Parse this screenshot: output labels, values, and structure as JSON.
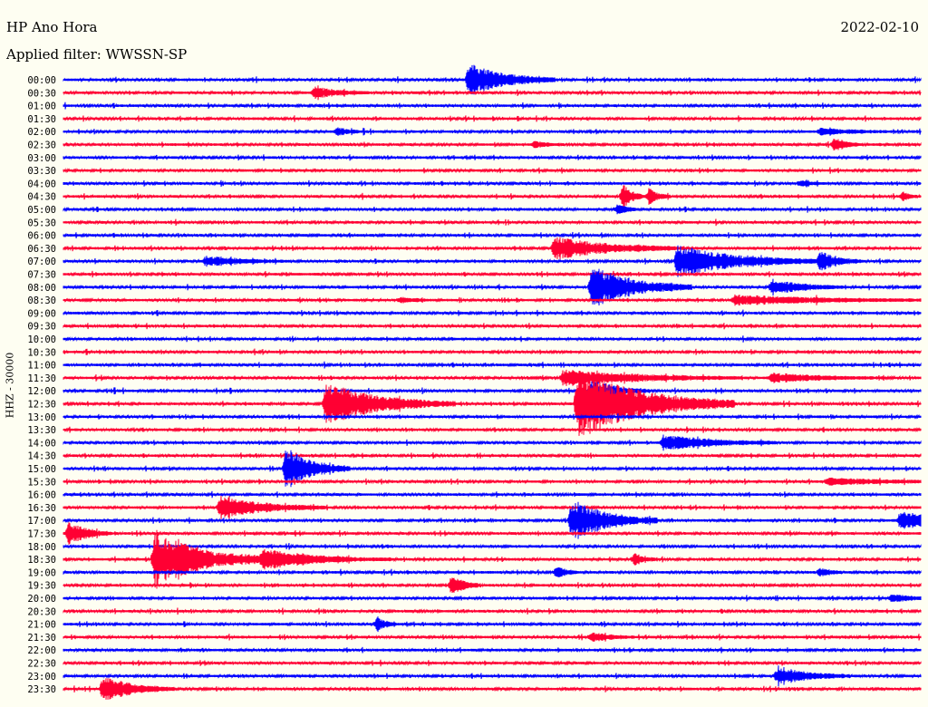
{
  "header": {
    "station": "HP Ano Hora",
    "date": "2022-02-10",
    "filter": "Applied filter: WWSSN-SP"
  },
  "colors": {
    "blue": "#0000ff",
    "red": "#ff0033",
    "background": "#fefef2"
  },
  "chart_data": {
    "type": "line",
    "ylabel": "HHZ - 30000",
    "trace_labels": [
      "00:00",
      "00:30",
      "01:00",
      "01:30",
      "02:00",
      "02:30",
      "03:00",
      "03:30",
      "04:00",
      "04:30",
      "05:00",
      "05:30",
      "06:00",
      "06:30",
      "07:00",
      "07:30",
      "08:00",
      "08:30",
      "09:00",
      "09:30",
      "10:00",
      "10:30",
      "11:00",
      "11:30",
      "12:00",
      "12:30",
      "13:00",
      "13:30",
      "14:00",
      "14:30",
      "15:00",
      "15:30",
      "16:00",
      "16:30",
      "17:00",
      "17:30",
      "18:00",
      "18:30",
      "19:00",
      "19:30",
      "20:00",
      "20:30",
      "21:00",
      "21:30",
      "22:00",
      "22:30",
      "23:00",
      "23:30"
    ],
    "trace_colors": [
      "blue",
      "red"
    ],
    "x_unit": "minutes",
    "x_range": [
      0,
      30
    ],
    "events": [
      {
        "trace": 0,
        "t": 14.2,
        "amp": 1.0,
        "dur": 1.2
      },
      {
        "trace": 1,
        "t": 8.8,
        "amp": 0.35,
        "dur": 0.8
      },
      {
        "trace": 4,
        "t": 9.6,
        "amp": 0.25,
        "dur": 0.4
      },
      {
        "trace": 4,
        "t": 26.5,
        "amp": 0.2,
        "dur": 1.0
      },
      {
        "trace": 5,
        "t": 27.0,
        "amp": 0.4,
        "dur": 0.4
      },
      {
        "trace": 5,
        "t": 16.5,
        "amp": 0.2,
        "dur": 0.4
      },
      {
        "trace": 8,
        "t": 25.8,
        "amp": 0.2,
        "dur": 0.3
      },
      {
        "trace": 9,
        "t": 19.6,
        "amp": 0.7,
        "dur": 0.3
      },
      {
        "trace": 9,
        "t": 20.5,
        "amp": 0.5,
        "dur": 0.3
      },
      {
        "trace": 9,
        "t": 29.4,
        "amp": 0.3,
        "dur": 0.2
      },
      {
        "trace": 10,
        "t": 19.4,
        "amp": 0.3,
        "dur": 0.3
      },
      {
        "trace": 13,
        "t": 17.2,
        "amp": 0.7,
        "dur": 1.8
      },
      {
        "trace": 14,
        "t": 5.0,
        "amp": 0.3,
        "dur": 1.2
      },
      {
        "trace": 14,
        "t": 21.5,
        "amp": 1.0,
        "dur": 2.0
      },
      {
        "trace": 14,
        "t": 26.5,
        "amp": 0.6,
        "dur": 0.6
      },
      {
        "trace": 16,
        "t": 18.5,
        "amp": 1.3,
        "dur": 1.4
      },
      {
        "trace": 16,
        "t": 24.8,
        "amp": 0.5,
        "dur": 1.0
      },
      {
        "trace": 17,
        "t": 11.8,
        "amp": 0.2,
        "dur": 0.4
      },
      {
        "trace": 17,
        "t": 23.5,
        "amp": 0.3,
        "dur": 3.0
      },
      {
        "trace": 23,
        "t": 17.5,
        "amp": 0.5,
        "dur": 2.5
      },
      {
        "trace": 23,
        "t": 24.8,
        "amp": 0.3,
        "dur": 1.6
      },
      {
        "trace": 24,
        "t": 18.5,
        "amp": 0.7,
        "dur": 0.8
      },
      {
        "trace": 25,
        "t": 9.2,
        "amp": 1.3,
        "dur": 1.8
      },
      {
        "trace": 25,
        "t": 18.0,
        "amp": 2.2,
        "dur": 2.2
      },
      {
        "trace": 28,
        "t": 21.0,
        "amp": 0.5,
        "dur": 1.6
      },
      {
        "trace": 30,
        "t": 7.8,
        "amp": 1.3,
        "dur": 0.9
      },
      {
        "trace": 31,
        "t": 26.8,
        "amp": 0.2,
        "dur": 2.0
      },
      {
        "trace": 33,
        "t": 5.5,
        "amp": 0.7,
        "dur": 1.5
      },
      {
        "trace": 34,
        "t": 17.8,
        "amp": 1.3,
        "dur": 1.2
      },
      {
        "trace": 34,
        "t": 29.3,
        "amp": 0.6,
        "dur": 1.2
      },
      {
        "trace": 35,
        "t": 0.2,
        "amp": 0.7,
        "dur": 0.6
      },
      {
        "trace": 37,
        "t": 3.2,
        "amp": 2.0,
        "dur": 0.8
      },
      {
        "trace": 37,
        "t": 4.0,
        "amp": 0.6,
        "dur": 3.0
      },
      {
        "trace": 37,
        "t": 7.0,
        "amp": 0.5,
        "dur": 1.2
      },
      {
        "trace": 37,
        "t": 20.0,
        "amp": 0.4,
        "dur": 0.3
      },
      {
        "trace": 38,
        "t": 17.3,
        "amp": 0.4,
        "dur": 0.3
      },
      {
        "trace": 38,
        "t": 26.5,
        "amp": 0.3,
        "dur": 0.3
      },
      {
        "trace": 39,
        "t": 13.6,
        "amp": 0.7,
        "dur": 0.4
      },
      {
        "trace": 40,
        "t": 29.0,
        "amp": 0.2,
        "dur": 1.0
      },
      {
        "trace": 42,
        "t": 11.0,
        "amp": 0.4,
        "dur": 0.3
      },
      {
        "trace": 43,
        "t": 18.5,
        "amp": 0.3,
        "dur": 0.6
      },
      {
        "trace": 46,
        "t": 25.0,
        "amp": 0.6,
        "dur": 1.0
      },
      {
        "trace": 47,
        "t": 1.4,
        "amp": 0.8,
        "dur": 1.0
      }
    ]
  }
}
